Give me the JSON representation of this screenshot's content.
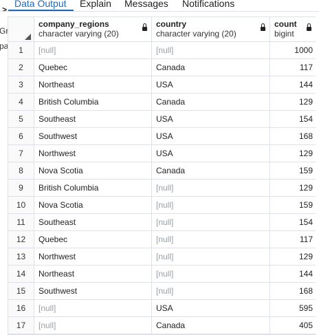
{
  "tabs": [
    "Data Output",
    "Explain",
    "Messages",
    "Notifications"
  ],
  "left_panel_fragments": [
    "Gro",
    "pa"
  ],
  "columns": [
    {
      "name": "company_regions",
      "type": "character varying (20)",
      "locked": true
    },
    {
      "name": "country",
      "type": "character varying (20)",
      "locked": true
    },
    {
      "name": "count",
      "type": "bigint",
      "locked": true
    }
  ],
  "rows": [
    {
      "num": "1",
      "region": "[null]",
      "country": "[null]",
      "count": "1000"
    },
    {
      "num": "2",
      "region": "Quebec",
      "country": "Canada",
      "count": "117"
    },
    {
      "num": "3",
      "region": "Northeast",
      "country": "USA",
      "count": "144"
    },
    {
      "num": "4",
      "region": "British Columbia",
      "country": "Canada",
      "count": "129"
    },
    {
      "num": "5",
      "region": "Southeast",
      "country": "USA",
      "count": "154"
    },
    {
      "num": "6",
      "region": "Southwest",
      "country": "USA",
      "count": "168"
    },
    {
      "num": "7",
      "region": "Northwest",
      "country": "USA",
      "count": "129"
    },
    {
      "num": "8",
      "region": "Nova Scotia",
      "country": "Canada",
      "count": "159"
    },
    {
      "num": "9",
      "region": "British Columbia",
      "country": "[null]",
      "count": "129"
    },
    {
      "num": "10",
      "region": "Nova Scotia",
      "country": "[null]",
      "count": "159"
    },
    {
      "num": "11",
      "region": "Southeast",
      "country": "[null]",
      "count": "154"
    },
    {
      "num": "12",
      "region": "Quebec",
      "country": "[null]",
      "count": "117"
    },
    {
      "num": "13",
      "region": "Northwest",
      "country": "[null]",
      "count": "129"
    },
    {
      "num": "14",
      "region": "Northeast",
      "country": "[null]",
      "count": "144"
    },
    {
      "num": "15",
      "region": "Southwest",
      "country": "[null]",
      "count": "168"
    },
    {
      "num": "16",
      "region": "[null]",
      "country": "USA",
      "count": "595"
    },
    {
      "num": "17",
      "region": "[null]",
      "country": "Canada",
      "count": "405"
    }
  ],
  "colors": {
    "accent": "#1f69b3",
    "null_text": "#9aa0a6",
    "grid_line": "#dde0e6"
  }
}
